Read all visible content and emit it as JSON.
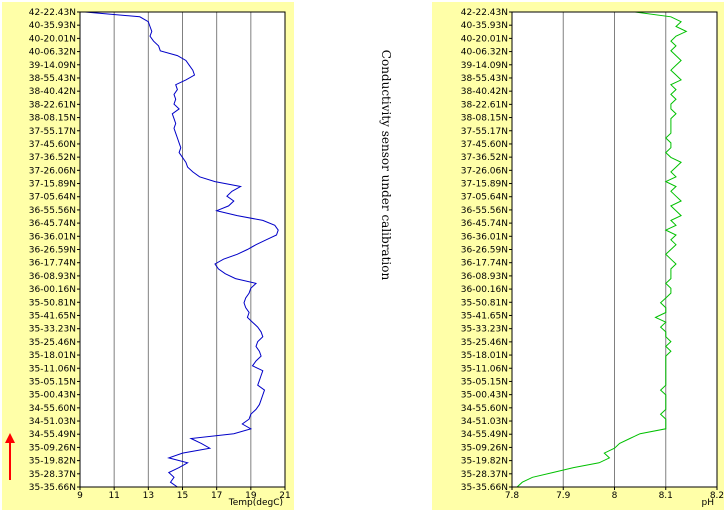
{
  "note": "Conductivity sensor under calibration",
  "latitude_labels": [
    "42-22.43N",
    "40-35.93N",
    "40-20.01N",
    "40-06.32N",
    "39-14.09N",
    "38-55.43N",
    "38-40.42N",
    "38-22.61N",
    "38-08.15N",
    "37-55.17N",
    "37-45.60N",
    "37-36.52N",
    "37-26.06N",
    "37-15.89N",
    "37-05.64N",
    "36-55.56N",
    "36-45.74N",
    "36-36.01N",
    "36-26.59N",
    "36-17.74N",
    "36-08.93N",
    "36-00.16N",
    "35-50.81N",
    "35-41.65N",
    "35-33.23N",
    "35-25.46N",
    "35-18.01N",
    "35-11.06N",
    "35-05.15N",
    "35-00.43N",
    "34-55.60N",
    "34-51.03N",
    "34-55.49N",
    "35-09.26N",
    "35-19.82N",
    "35-28.37N",
    "35-35.66N"
  ],
  "colors": {
    "panel_bg": "#ffffa8",
    "plot_bg": "#ffffff",
    "temp_line": "#0000c8",
    "ph_line": "#00c000",
    "grid": "#808080",
    "arrow": "#ff0000"
  },
  "arrow_icon": "up-arrow-icon",
  "chart_data": [
    {
      "type": "line",
      "xlabel": "Temp(degC)",
      "xlim": [
        9,
        21
      ],
      "xticks": [
        "9",
        "11",
        "13",
        "15",
        "17",
        "19",
        "21"
      ],
      "series": [
        {
          "values": [
            9.3,
            12.5,
            13.0,
            13.1,
            13.2,
            13.1,
            13.3,
            13.6,
            13.7,
            14.7,
            15.2,
            15.4,
            15.6,
            15.7,
            15.2,
            14.6,
            14.7,
            14.5,
            14.6,
            14.5,
            14.8,
            14.4,
            14.5,
            14.6,
            14.5,
            14.6,
            14.7,
            14.8,
            14.9,
            14.8,
            15.0,
            15.2,
            15.3,
            15.6,
            16.0,
            16.9,
            18.4,
            17.9,
            17.6,
            18.0,
            17.7,
            17.0,
            18.2,
            19.7,
            20.4,
            20.6,
            20.5,
            19.9,
            19.3,
            18.8,
            18.2,
            17.4,
            16.9,
            17.1,
            17.5,
            18.1,
            19.3,
            19.0,
            18.9,
            18.7,
            18.6,
            18.7,
            18.9,
            18.8,
            19.1,
            19.4,
            19.6,
            19.7,
            19.4,
            19.3,
            19.5,
            19.6,
            19.3,
            19.1,
            19.7,
            19.6,
            19.5,
            19.4,
            19.8,
            19.7,
            19.6,
            19.5,
            19.3,
            19.0,
            18.9,
            18.5,
            19.0,
            18.0,
            15.5,
            16.1,
            16.6,
            15.0,
            14.2,
            15.3,
            14.8,
            14.2,
            14.5,
            14.3,
            14.7
          ]
        }
      ]
    },
    {
      "type": "line",
      "xlabel": "pH",
      "xlim": [
        7.8,
        8.2
      ],
      "xticks": [
        "7.8",
        "7.9",
        "8",
        "8.1",
        "8.2"
      ],
      "series": [
        {
          "values": [
            8.04,
            8.11,
            8.13,
            8.12,
            8.14,
            8.12,
            8.11,
            8.12,
            8.11,
            8.12,
            8.13,
            8.12,
            8.11,
            8.12,
            8.13,
            8.11,
            8.12,
            8.11,
            8.12,
            8.11,
            8.11,
            8.12,
            8.11,
            8.11,
            8.11,
            8.11,
            8.1,
            8.11,
            8.11,
            8.1,
            8.11,
            8.13,
            8.12,
            8.11,
            8.12,
            8.1,
            8.12,
            8.11,
            8.12,
            8.13,
            8.11,
            8.12,
            8.13,
            8.11,
            8.12,
            8.1,
            8.12,
            8.11,
            8.12,
            8.11,
            8.1,
            8.11,
            8.12,
            8.11,
            8.11,
            8.11,
            8.1,
            8.11,
            8.11,
            8.1,
            8.09,
            8.1,
            8.1,
            8.08,
            8.1,
            8.09,
            8.1,
            8.1,
            8.11,
            8.1,
            8.11,
            8.1,
            8.1,
            8.1,
            8.1,
            8.1,
            8.1,
            8.1,
            8.09,
            8.1,
            8.1,
            8.1,
            8.1,
            8.09,
            8.1,
            8.1,
            8.1,
            8.05,
            8.03,
            8.01,
            8.0,
            7.98,
            7.99,
            7.97,
            7.92,
            7.88,
            7.84,
            7.82,
            7.81
          ]
        }
      ]
    }
  ]
}
